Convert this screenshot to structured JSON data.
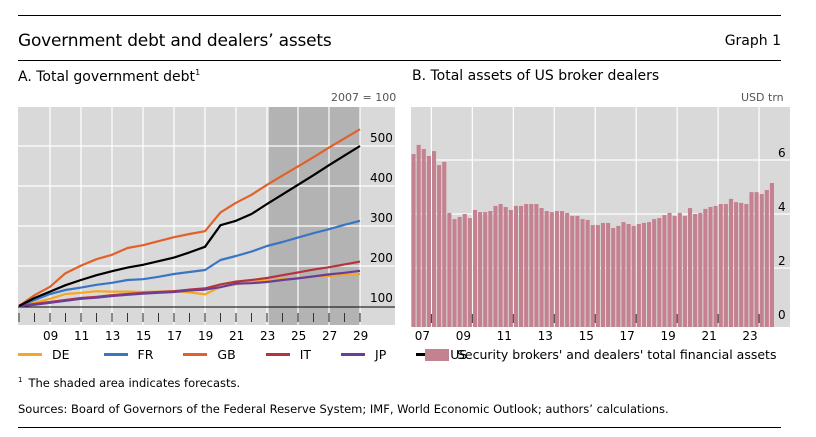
{
  "header": {
    "title": "Government debt and dealers’ assets",
    "graph_number": "Graph 1"
  },
  "panel_a": {
    "title": "A. Total government debt",
    "title_footnote": "1",
    "unit": "2007 = 100"
  },
  "panel_b": {
    "title": "B. Total assets of US broker dealers",
    "unit": "USD trn"
  },
  "footnote": {
    "marker": "1",
    "text": "The shaded area indicates forecasts."
  },
  "sources": "Sources: Board of Governors of the Federal Reserve System; IMF, World Economic Outlook; authors’ calculations.",
  "chart_data": [
    {
      "type": "line",
      "title": "A. Total government debt",
      "ylabel": "2007 = 100",
      "x": [
        2007,
        2008,
        2009,
        2010,
        2011,
        2012,
        2013,
        2014,
        2015,
        2016,
        2017,
        2018,
        2019,
        2020,
        2021,
        2022,
        2023,
        2024,
        2025,
        2026,
        2027,
        2028,
        2029
      ],
      "xticks": [
        "09",
        "11",
        "13",
        "15",
        "17",
        "19",
        "21",
        "23",
        "25",
        "27",
        "29"
      ],
      "xtick_years": [
        2009,
        2011,
        2013,
        2015,
        2017,
        2019,
        2021,
        2023,
        2025,
        2027,
        2029
      ],
      "yticks": [
        100,
        200,
        300,
        400,
        500
      ],
      "ylim": [
        100,
        600
      ],
      "forecast_shading": [
        2023,
        2029
      ],
      "grid": true,
      "legend_position": "bottom",
      "series": [
        {
          "name": "DE",
          "color": "#f5a623",
          "values": [
            100,
            108,
            118,
            130,
            133,
            137,
            136,
            136,
            135,
            136,
            137,
            134,
            129,
            148,
            154,
            160,
            164,
            167,
            170,
            173,
            175,
            178,
            180
          ]
        },
        {
          "name": "FR",
          "color": "#3a75c4",
          "values": [
            100,
            115,
            130,
            140,
            146,
            153,
            158,
            165,
            167,
            173,
            180,
            185,
            190,
            215,
            225,
            236,
            250,
            260,
            271,
            282,
            292,
            303,
            313
          ]
        },
        {
          "name": "GB",
          "color": "#e0622a",
          "values": [
            100,
            127,
            148,
            182,
            201,
            217,
            228,
            245,
            252,
            262,
            272,
            280,
            287,
            334,
            358,
            378,
            403,
            426,
            449,
            472,
            496,
            519,
            542
          ]
        },
        {
          "name": "IT",
          "color": "#b5343c",
          "values": [
            100,
            105,
            110,
            115,
            120,
            123,
            127,
            130,
            133,
            135,
            137,
            141,
            144,
            154,
            161,
            165,
            170,
            177,
            184,
            191,
            197,
            204,
            211
          ]
        },
        {
          "name": "JP",
          "color": "#6a3d9a",
          "values": [
            100,
            103,
            108,
            113,
            118,
            121,
            125,
            128,
            131,
            133,
            135,
            139,
            141,
            147,
            156,
            157,
            160,
            165,
            169,
            174,
            179,
            183,
            188
          ]
        },
        {
          "name": "US",
          "color": "#000000",
          "values": [
            100,
            120,
            136,
            152,
            165,
            177,
            187,
            196,
            203,
            212,
            221,
            234,
            248,
            302,
            313,
            330,
            355,
            379,
            403,
            427,
            452,
            476,
            500
          ]
        }
      ]
    },
    {
      "type": "bar",
      "title": "B. Total assets of US broker dealers",
      "ylabel": "USD trn",
      "frequency": "quarterly",
      "start": "2007Q1",
      "xticks": [
        "07",
        "09",
        "11",
        "13",
        "15",
        "17",
        "19",
        "21",
        "23"
      ],
      "yticks": [
        0,
        2,
        4,
        6
      ],
      "ylim": [
        0,
        8
      ],
      "grid": true,
      "legend_position": "bottom",
      "series": [
        {
          "name": "Security brokers' and dealers' total financial assets",
          "color": "#c4818f",
          "values": [
            6.22,
            6.56,
            6.41,
            6.15,
            6.33,
            5.81,
            5.93,
            4.04,
            3.81,
            3.89,
            4.0,
            3.85,
            4.15,
            4.07,
            4.07,
            4.11,
            4.3,
            4.37,
            4.26,
            4.15,
            4.3,
            4.3,
            4.37,
            4.37,
            4.37,
            4.22,
            4.11,
            4.07,
            4.11,
            4.11,
            4.04,
            3.93,
            3.93,
            3.81,
            3.78,
            3.59,
            3.59,
            3.67,
            3.67,
            3.48,
            3.56,
            3.7,
            3.63,
            3.56,
            3.63,
            3.67,
            3.7,
            3.81,
            3.85,
            3.96,
            4.04,
            3.93,
            4.04,
            3.93,
            4.22,
            4.0,
            4.04,
            4.19,
            4.26,
            4.3,
            4.37,
            4.37,
            4.56,
            4.44,
            4.41,
            4.37,
            4.81,
            4.81,
            4.74,
            4.89,
            5.15
          ]
        }
      ]
    }
  ]
}
